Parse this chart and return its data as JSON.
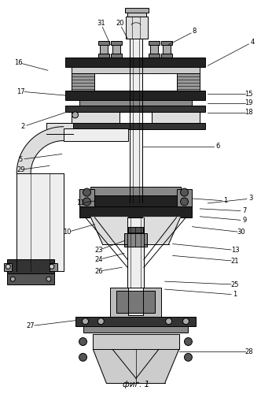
{
  "caption": "фиг. 1",
  "bg_color": "#ffffff",
  "lc": "#000000",
  "labels": [
    [
      "16",
      22,
      78
    ],
    [
      "31",
      128,
      28
    ],
    [
      "20",
      152,
      28
    ],
    [
      "8",
      248,
      38
    ],
    [
      "4",
      320,
      52
    ],
    [
      "17",
      25,
      112
    ],
    [
      "2",
      30,
      160
    ],
    [
      "15",
      318,
      118
    ],
    [
      "19",
      318,
      130
    ],
    [
      "18",
      318,
      142
    ],
    [
      "5",
      28,
      202
    ],
    [
      "29",
      28,
      215
    ],
    [
      "6",
      278,
      185
    ],
    [
      "11",
      102,
      258
    ],
    [
      "1",
      285,
      255
    ],
    [
      "3",
      318,
      252
    ],
    [
      "7",
      312,
      268
    ],
    [
      "9",
      312,
      280
    ],
    [
      "10",
      88,
      295
    ],
    [
      "30",
      308,
      295
    ],
    [
      "23",
      128,
      318
    ],
    [
      "24",
      128,
      330
    ],
    [
      "13",
      300,
      318
    ],
    [
      "21",
      300,
      332
    ],
    [
      "26",
      128,
      345
    ],
    [
      "1",
      300,
      380
    ],
    [
      "25",
      300,
      370
    ],
    [
      "27",
      38,
      415
    ],
    [
      "28",
      315,
      448
    ]
  ]
}
